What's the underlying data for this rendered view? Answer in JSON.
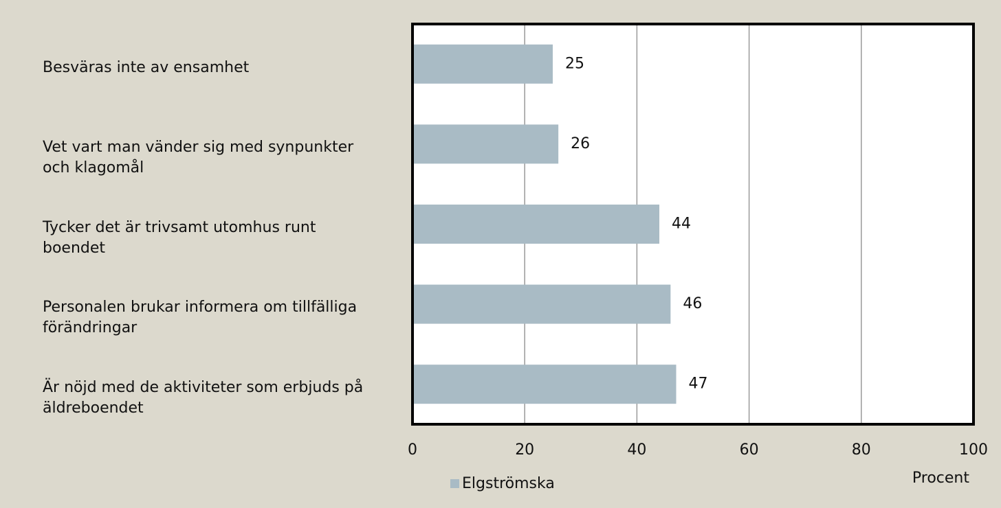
{
  "chart_data": {
    "type": "hbar",
    "categories": [
      "Besväras inte av ensamhet",
      "Vet vart man vänder sig med synpunkter och klagomål",
      "Tycker det är trivsamt utomhus runt boendet",
      "Personalen brukar informera om tillfälliga förändringar",
      "Är nöjd med de aktiviteter som erbjuds på äldreboendet"
    ],
    "series": [
      {
        "name": "Elgströmska",
        "color": "#a9bbc5",
        "values": [
          25,
          26,
          44,
          46,
          47
        ]
      }
    ],
    "xlim": [
      0,
      100
    ],
    "xticks": [
      0,
      20,
      40,
      60,
      80,
      100
    ],
    "xlabel": "Procent",
    "grid": true
  }
}
